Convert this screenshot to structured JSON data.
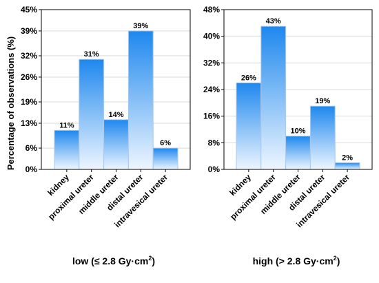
{
  "ylabel": "Percentage of observations (%)",
  "bar_gradient": {
    "top": "#1e88ee",
    "bottom": "#eef6ff"
  },
  "chart_data": [
    {
      "type": "bar",
      "title": "low (≤ 2.8 Gy·cm",
      "title_sup": "2",
      "title_close": ")",
      "categories": [
        "kidney",
        "proximal ureter",
        "middle ureter",
        "distal ureter",
        "intravesical ureter"
      ],
      "values": [
        11,
        31,
        14,
        39,
        6
      ],
      "data_labels": [
        "11%",
        "31%",
        "14%",
        "39%",
        "6%"
      ],
      "yticks": [
        0,
        6,
        13,
        19,
        26,
        32,
        39,
        45
      ],
      "ytick_labels": [
        "0%",
        "6%",
        "13%",
        "19%",
        "26%",
        "32%",
        "39%",
        "45%"
      ],
      "ylim": [
        0,
        45
      ],
      "grid": true
    },
    {
      "type": "bar",
      "title": "high (> 2.8 Gy·cm",
      "title_sup": "2",
      "title_close": ")",
      "categories": [
        "kidney",
        "proximal ureter",
        "middle ureter",
        "distal ureter",
        "intravesical ureter"
      ],
      "values": [
        26,
        43,
        10,
        19,
        2
      ],
      "data_labels": [
        "26%",
        "43%",
        "10%",
        "19%",
        "2%"
      ],
      "yticks": [
        0,
        8,
        16,
        24,
        32,
        40,
        48
      ],
      "ytick_labels": [
        "0%",
        "8%",
        "16%",
        "24%",
        "32%",
        "40%",
        "48%"
      ],
      "ylim": [
        0,
        48
      ],
      "grid": true
    }
  ]
}
